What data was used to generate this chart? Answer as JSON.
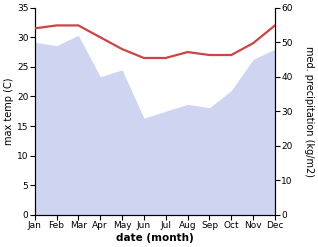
{
  "months": [
    "Jan",
    "Feb",
    "Mar",
    "Apr",
    "May",
    "Jun",
    "Jul",
    "Aug",
    "Sep",
    "Oct",
    "Nov",
    "Dec"
  ],
  "temperature": [
    31.5,
    32.0,
    32.0,
    30.0,
    28.0,
    26.5,
    26.5,
    27.5,
    27.0,
    27.0,
    29.0,
    32.0
  ],
  "precipitation": [
    50,
    49,
    52,
    40,
    42,
    28,
    30,
    32,
    31,
    36,
    45,
    48
  ],
  "temp_color": "#cc4444",
  "precip_color": "#b0b8e8",
  "temp_ylim": [
    0,
    35
  ],
  "precip_ylim": [
    0,
    60
  ],
  "temp_yticks": [
    0,
    5,
    10,
    15,
    20,
    25,
    30,
    35
  ],
  "precip_yticks": [
    0,
    10,
    20,
    30,
    40,
    50,
    60
  ],
  "temp_ylabel": "max temp (C)",
  "precip_ylabel": "med. precipitation (kg/m2)",
  "xlabel": "date (month)",
  "bg_color": "#ffffff",
  "temp_linewidth": 1.6,
  "precip_alpha": 0.6,
  "label_fontsize": 7.0,
  "tick_fontsize": 6.5,
  "xlabel_fontsize": 7.5
}
